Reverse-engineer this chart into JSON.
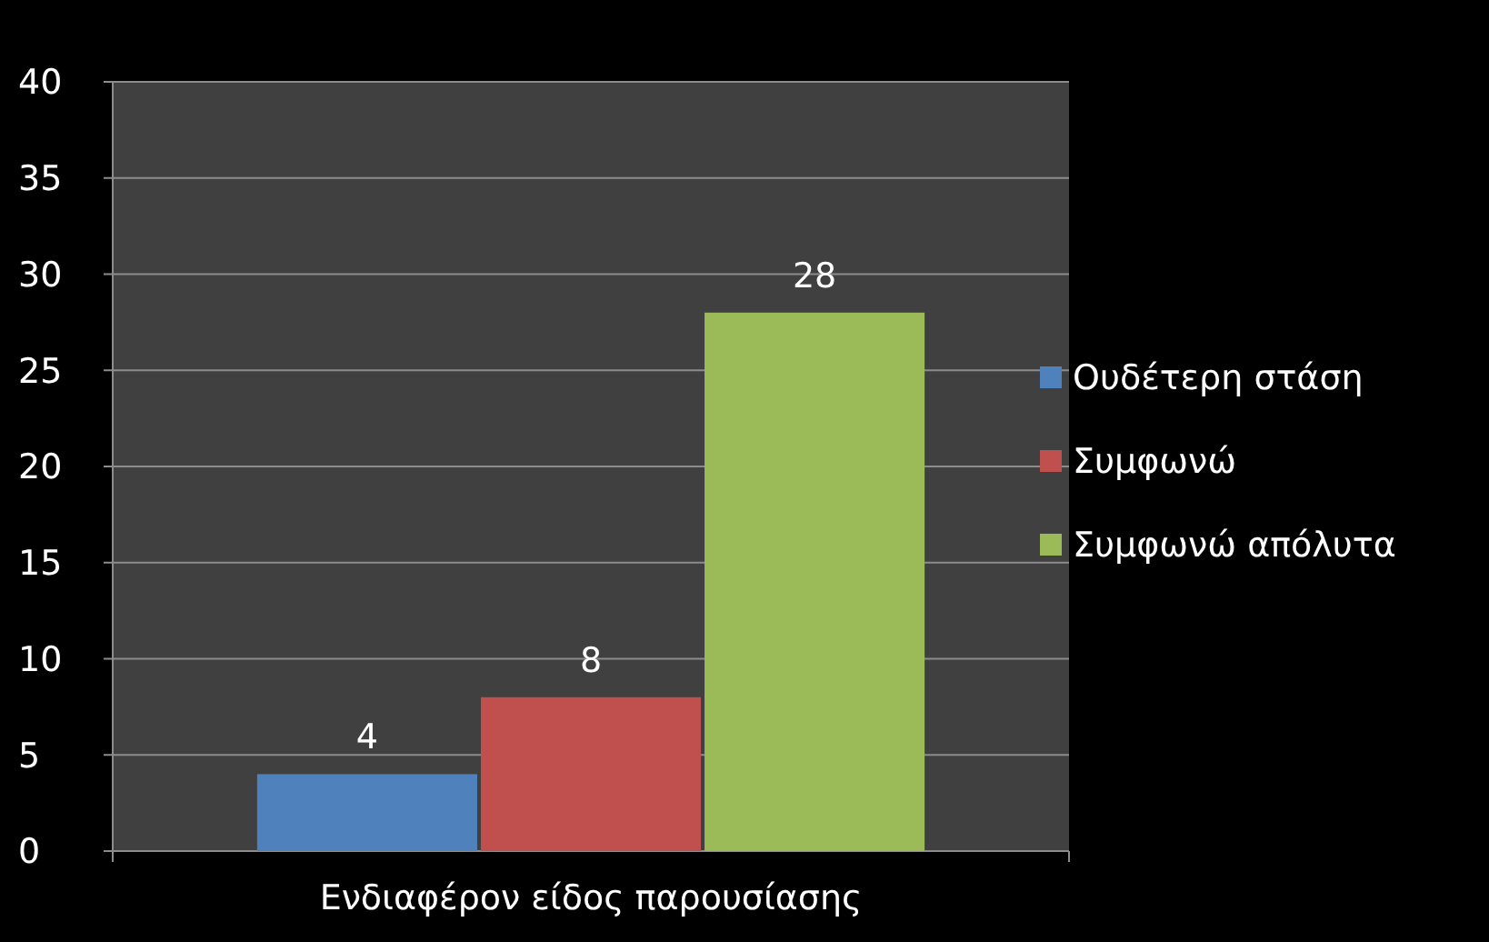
{
  "chart_data": {
    "type": "bar",
    "categories": [
      "Ενδιαφέρον είδος παρουσίασης"
    ],
    "series": [
      {
        "name": "Ουδέτερη στάση",
        "color": "#4f81bd",
        "values": [
          4
        ]
      },
      {
        "name": "Συμφωνώ",
        "color": "#c0504d",
        "values": [
          8
        ]
      },
      {
        "name": "Συμφωνώ απόλυτα",
        "color": "#9bbb59",
        "values": [
          28
        ]
      }
    ],
    "ylim": [
      0,
      40
    ],
    "yticks": [
      0,
      5,
      10,
      15,
      20,
      25,
      30,
      35,
      40
    ],
    "grid": "y",
    "legend": "right",
    "data_labels": true
  }
}
